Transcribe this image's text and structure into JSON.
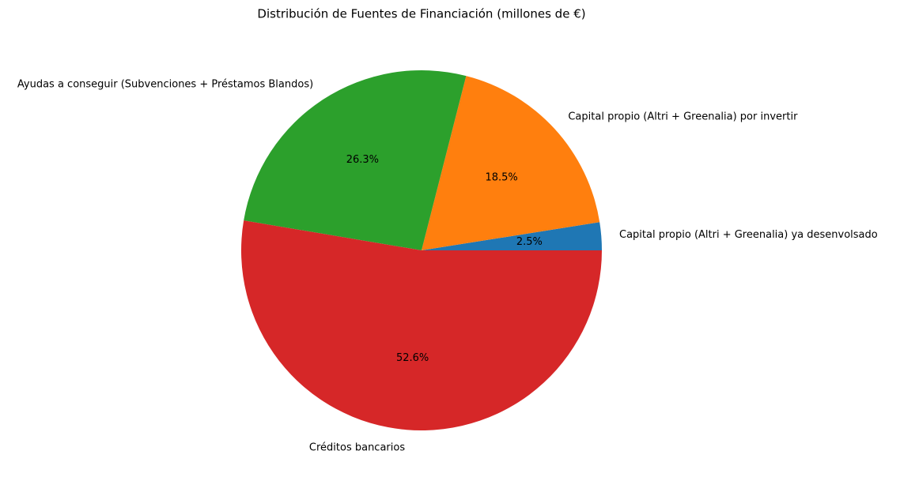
{
  "chart_data": {
    "type": "pie",
    "title": "Distribución de Fuentes de Financiación (millones de €)",
    "categories": [
      "Capital propio (Altri + Greenalia) ya desenvolsado",
      "Capital propio (Altri + Greenalia) por invertir",
      "Ayudas a conseguir (Subvenciones + Préstamos Blandos)",
      "Créditos bancarios"
    ],
    "values": [
      2.5,
      18.5,
      26.3,
      52.6
    ],
    "value_labels": [
      "2.5%",
      "18.5%",
      "26.3%",
      "52.6%"
    ],
    "colors": [
      "#1f77b4",
      "#ff7f0e",
      "#2ca02c",
      "#d62728"
    ]
  }
}
